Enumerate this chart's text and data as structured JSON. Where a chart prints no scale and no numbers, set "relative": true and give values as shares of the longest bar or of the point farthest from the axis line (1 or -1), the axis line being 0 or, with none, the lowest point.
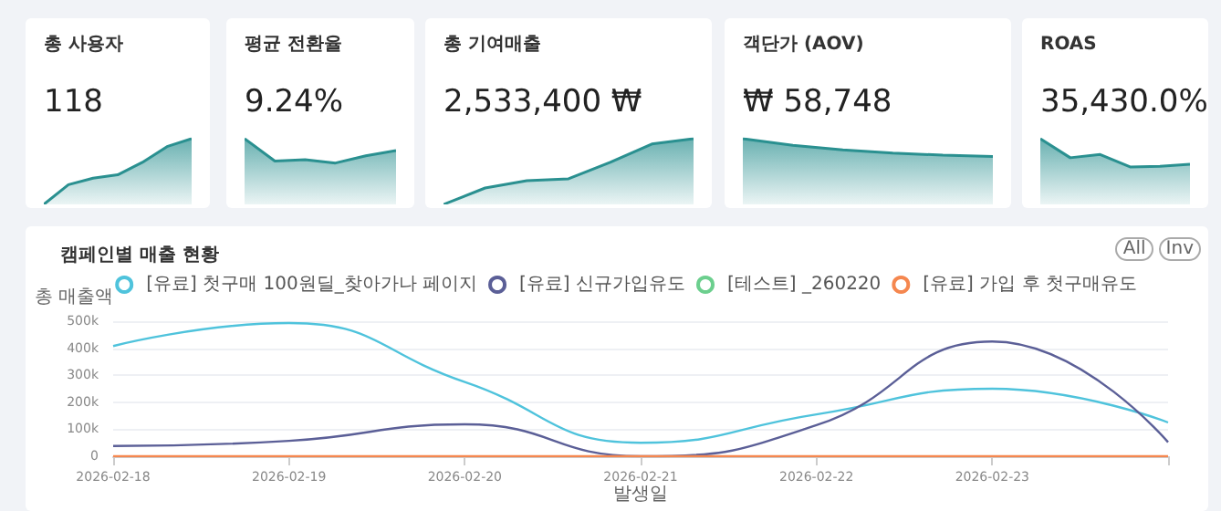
{
  "chart_data": [
    {
      "type": "area",
      "title": "총 사용자",
      "subtitle": "118",
      "relative": true,
      "categories": [
        null,
        null,
        null,
        null,
        null,
        null,
        null
      ],
      "values": [
        0,
        0.3,
        0.4,
        0.45,
        0.64,
        0.88,
        1
      ],
      "color": "#2a9090"
    },
    {
      "type": "area",
      "title": "평균 전환율",
      "subtitle": "9.24%",
      "relative": true,
      "categories": [
        null,
        null,
        null,
        null,
        null,
        null
      ],
      "values": [
        1,
        0.66,
        0.68,
        0.63,
        0.74,
        0.82
      ],
      "color": "#2a9090"
    },
    {
      "type": "area",
      "title": "총 기여매출",
      "subtitle": "2,533,400 ₩",
      "relative": true,
      "categories": [
        null,
        null,
        null,
        null,
        null,
        null,
        null
      ],
      "values": [
        0,
        0.25,
        0.36,
        0.39,
        0.64,
        0.92,
        1
      ],
      "color": "#2a9090"
    },
    {
      "type": "area",
      "title": "객단가 (AOV)",
      "subtitle": "₩ 58,748",
      "relative": true,
      "categories": [
        null,
        null,
        null,
        null,
        null,
        null
      ],
      "values": [
        1,
        0.9,
        0.83,
        0.78,
        0.75,
        0.73
      ],
      "color": "#2a9090"
    },
    {
      "type": "area",
      "title": "ROAS",
      "subtitle": "35,430.0%",
      "relative": true,
      "categories": [
        null,
        null,
        null,
        null,
        null,
        null
      ],
      "values": [
        1,
        0.71,
        0.76,
        0.57,
        0.58,
        0.61
      ],
      "color": "#2a9090"
    },
    {
      "type": "line",
      "title": "캠페인별 매출 현황",
      "xlabel": "발생일",
      "ylabel": "총 매출액",
      "categories": [
        "2026-02-18",
        "2026-02-19",
        "2026-02-20",
        "2026-02-21",
        "2026-02-22",
        "2026-02-23",
        null
      ],
      "ylim": [
        0,
        500000
      ],
      "yticks": [
        {
          "value": 0,
          "label": "0"
        },
        {
          "value": 100000,
          "label": "100k"
        },
        {
          "value": 200000,
          "label": "200k"
        },
        {
          "value": 300000,
          "label": "300k"
        },
        {
          "value": 400000,
          "label": "400k"
        },
        {
          "value": 500000,
          "label": "500k"
        }
      ],
      "grid": "y",
      "legend": "top right",
      "marker": "none",
      "line_style": "solid",
      "annotations": [
        "All",
        "Inv"
      ],
      "series": [
        {
          "name": "[유료] 첫구매 100원딜_찾아가나 페이지",
          "color": "#4fc3dc",
          "values": [
            408000,
            493000,
            275000,
            50000,
            155000,
            250000,
            125000
          ]
        },
        {
          "name": "[유료] 신규가입유도",
          "color": "#5b5f97",
          "values": [
            38000,
            57000,
            118000,
            0,
            115000,
            425000,
            52000
          ]
        },
        {
          "name": "[테스트] _260220",
          "color": "#6ccf8e",
          "values": [
            null,
            null,
            null,
            null,
            null,
            null,
            null
          ]
        },
        {
          "name": "[유료] 가입 후 첫구매유도",
          "color": "#f5874f",
          "values": [
            0,
            0,
            0,
            0,
            0,
            0,
            0
          ]
        }
      ]
    }
  ]
}
